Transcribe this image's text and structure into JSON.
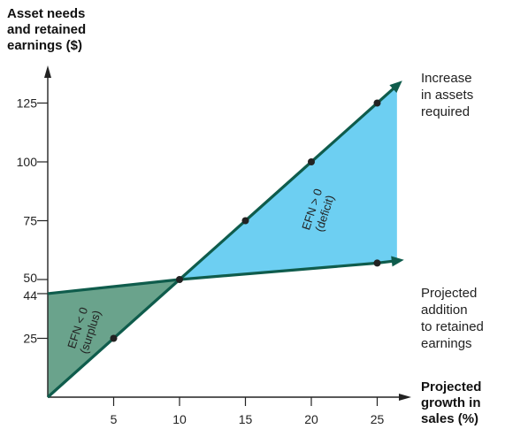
{
  "chart_data": {
    "type": "line",
    "ylabel": [
      "Asset needs",
      "and retained",
      "earnings ($)"
    ],
    "xlabel": [
      "Projected",
      "growth in",
      "sales (%)"
    ],
    "xlim": [
      0,
      27.6
    ],
    "ylim": [
      0,
      138
    ],
    "x_ticks": [
      5,
      10,
      15,
      20,
      25
    ],
    "y_ticks": [
      25,
      44,
      50,
      75,
      100,
      125
    ],
    "series": [
      {
        "name": "Increase in assets required",
        "points": [
          [
            0,
            0
          ],
          [
            5,
            25
          ],
          [
            10,
            50
          ],
          [
            15,
            75
          ],
          [
            20,
            100
          ],
          [
            25,
            125
          ],
          [
            26.5,
            132.5
          ]
        ]
      },
      {
        "name": "Projected addition to retained earnings",
        "points": [
          [
            0,
            44
          ],
          [
            10,
            50
          ],
          [
            25,
            57
          ],
          [
            26.5,
            58
          ]
        ]
      }
    ],
    "markers": [
      [
        5,
        25
      ],
      [
        10,
        50
      ],
      [
        15,
        75
      ],
      [
        20,
        100
      ],
      [
        25,
        125
      ],
      [
        25,
        57
      ]
    ],
    "regions": [
      {
        "label": [
          "EFN < 0",
          "(surplus)"
        ],
        "color": "#6aa38c"
      },
      {
        "label": [
          "EFN > 0",
          "(deficit)"
        ],
        "color": "#6dcff2"
      }
    ],
    "line_color": "#0f5c4c"
  }
}
